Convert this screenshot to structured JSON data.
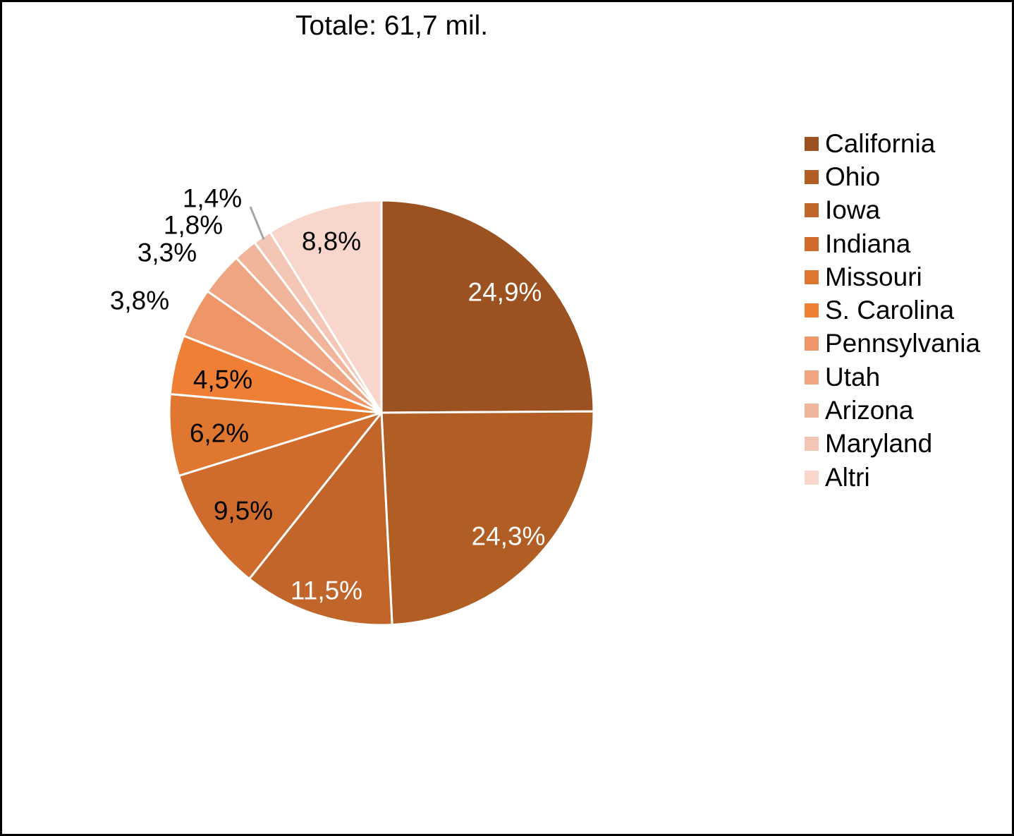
{
  "chart_data": {
    "type": "pie",
    "title": "Totale: 61,7 mil.",
    "slices": [
      {
        "label": "California",
        "value": 24.9,
        "display": "24,9%",
        "color": "#9c5120"
      },
      {
        "label": "Ohio",
        "value": 24.3,
        "display": "24,3%",
        "color": "#b15e25"
      },
      {
        "label": "Iowa",
        "value": 11.5,
        "display": "11,5%",
        "color": "#c1652a"
      },
      {
        "label": "Indiana",
        "value": 9.5,
        "display": "9,5%",
        "color": "#cf6c2d"
      },
      {
        "label": "Missouri",
        "value": 6.2,
        "display": "6,2%",
        "color": "#e07730"
      },
      {
        "label": "S. Carolina",
        "value": 4.5,
        "display": "4,5%",
        "color": "#ee7f34"
      },
      {
        "label": "Pennsylvania",
        "value": 3.8,
        "display": "3,8%",
        "color": "#ee9668"
      },
      {
        "label": "Utah",
        "value": 3.3,
        "display": "3,3%",
        "color": "#efa582"
      },
      {
        "label": "Arizona",
        "value": 1.8,
        "display": "1,8%",
        "color": "#f1b59c"
      },
      {
        "label": "Maryland",
        "value": 1.4,
        "display": "1,4%",
        "color": "#f4c6b6"
      },
      {
        "label": "Altri",
        "value": 8.8,
        "display": "8,8%",
        "color": "#f8d6cc"
      }
    ],
    "legend_position": "right"
  }
}
